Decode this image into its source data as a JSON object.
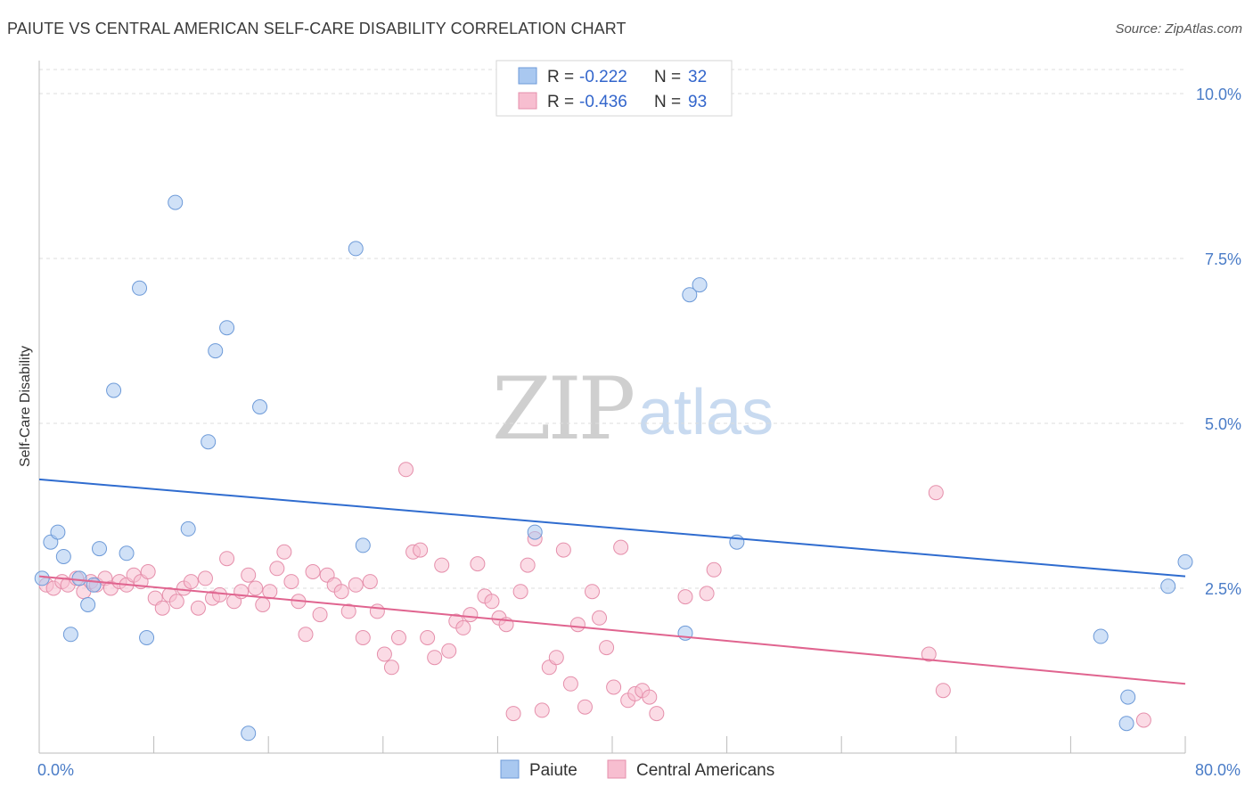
{
  "title": "PAIUTE VS CENTRAL AMERICAN SELF-CARE DISABILITY CORRELATION CHART",
  "source": "Source: ZipAtlas.com",
  "watermark": {
    "zip": "ZIP",
    "atlas": "atlas"
  },
  "legend": {
    "rows": [
      {
        "r_label": "R =",
        "r_value": "-0.222",
        "n_label": "N =",
        "n_value": "32"
      },
      {
        "r_label": "R =",
        "r_value": "-0.436",
        "n_label": "N =",
        "n_value": "93"
      }
    ]
  },
  "chart_data": {
    "type": "scatter",
    "title": "PAIUTE VS CENTRAL AMERICAN SELF-CARE DISABILITY CORRELATION CHART",
    "xlabel": "",
    "ylabel": "Self-Care Disability",
    "xlim": [
      0,
      80
    ],
    "ylim": [
      0,
      10.5
    ],
    "x_tick_labels": [
      "0.0%",
      "80.0%"
    ],
    "y_ticks": [
      2.5,
      5.0,
      7.5,
      10.0
    ],
    "y_tick_labels": [
      "2.5%",
      "5.0%",
      "7.5%",
      "10.0%"
    ],
    "grid": true,
    "legend_position": "top-center",
    "series": [
      {
        "name": "Paiute",
        "color": "#a9c8f0",
        "edge": "#6d9ad8",
        "trend_color": "#2f6ccf",
        "trend": {
          "x0": 0,
          "y0": 4.15,
          "x1": 80,
          "y1": 2.68
        },
        "points": [
          [
            0.2,
            2.65
          ],
          [
            0.8,
            3.2
          ],
          [
            1.3,
            3.35
          ],
          [
            1.7,
            2.98
          ],
          [
            2.2,
            1.8
          ],
          [
            2.8,
            2.65
          ],
          [
            3.4,
            2.25
          ],
          [
            3.8,
            2.55
          ],
          [
            4.2,
            3.1
          ],
          [
            5.2,
            5.5
          ],
          [
            6.1,
            3.03
          ],
          [
            7.0,
            7.05
          ],
          [
            7.5,
            1.75
          ],
          [
            9.5,
            8.35
          ],
          [
            10.4,
            3.4
          ],
          [
            11.8,
            4.72
          ],
          [
            12.3,
            6.1
          ],
          [
            13.1,
            6.45
          ],
          [
            14.6,
            0.3
          ],
          [
            15.4,
            5.25
          ],
          [
            22.1,
            7.65
          ],
          [
            22.6,
            3.15
          ],
          [
            34.6,
            3.35
          ],
          [
            45.1,
            1.82
          ],
          [
            45.4,
            6.95
          ],
          [
            46.1,
            7.1
          ],
          [
            48.7,
            3.2
          ],
          [
            74.1,
            1.77
          ],
          [
            75.9,
            0.45
          ],
          [
            76.0,
            0.85
          ],
          [
            78.8,
            2.53
          ],
          [
            80.0,
            2.9
          ]
        ]
      },
      {
        "name": "Central Americans",
        "color": "#f7bed0",
        "edge": "#e58fab",
        "trend_color": "#e0648f",
        "trend": {
          "x0": 0,
          "y0": 2.68,
          "x1": 80,
          "y1": 1.05
        },
        "points": [
          [
            0.5,
            2.55
          ],
          [
            1.0,
            2.5
          ],
          [
            1.6,
            2.6
          ],
          [
            2.0,
            2.55
          ],
          [
            2.6,
            2.65
          ],
          [
            3.1,
            2.45
          ],
          [
            3.6,
            2.6
          ],
          [
            4.0,
            2.55
          ],
          [
            4.6,
            2.65
          ],
          [
            5.0,
            2.5
          ],
          [
            5.6,
            2.6
          ],
          [
            6.1,
            2.55
          ],
          [
            6.6,
            2.7
          ],
          [
            7.1,
            2.6
          ],
          [
            7.6,
            2.75
          ],
          [
            8.1,
            2.35
          ],
          [
            8.6,
            2.2
          ],
          [
            9.1,
            2.4
          ],
          [
            9.6,
            2.3
          ],
          [
            10.1,
            2.5
          ],
          [
            10.6,
            2.6
          ],
          [
            11.1,
            2.2
          ],
          [
            11.6,
            2.65
          ],
          [
            12.1,
            2.35
          ],
          [
            12.6,
            2.4
          ],
          [
            13.1,
            2.95
          ],
          [
            13.6,
            2.3
          ],
          [
            14.1,
            2.45
          ],
          [
            14.6,
            2.7
          ],
          [
            15.1,
            2.5
          ],
          [
            15.6,
            2.25
          ],
          [
            16.1,
            2.45
          ],
          [
            16.6,
            2.8
          ],
          [
            17.1,
            3.05
          ],
          [
            17.6,
            2.6
          ],
          [
            18.1,
            2.3
          ],
          [
            18.6,
            1.8
          ],
          [
            19.1,
            2.75
          ],
          [
            19.6,
            2.1
          ],
          [
            20.1,
            2.7
          ],
          [
            20.6,
            2.55
          ],
          [
            21.1,
            2.45
          ],
          [
            21.6,
            2.15
          ],
          [
            22.1,
            2.55
          ],
          [
            22.6,
            1.75
          ],
          [
            23.1,
            2.6
          ],
          [
            23.6,
            2.15
          ],
          [
            24.1,
            1.5
          ],
          [
            24.6,
            1.3
          ],
          [
            25.1,
            1.75
          ],
          [
            25.6,
            4.3
          ],
          [
            26.1,
            3.05
          ],
          [
            26.6,
            3.08
          ],
          [
            27.1,
            1.75
          ],
          [
            27.6,
            1.45
          ],
          [
            28.1,
            2.85
          ],
          [
            28.6,
            1.55
          ],
          [
            29.1,
            2.0
          ],
          [
            29.6,
            1.9
          ],
          [
            30.1,
            2.1
          ],
          [
            30.6,
            2.87
          ],
          [
            31.1,
            2.38
          ],
          [
            31.6,
            2.3
          ],
          [
            32.1,
            2.05
          ],
          [
            32.6,
            1.95
          ],
          [
            33.1,
            0.6
          ],
          [
            33.6,
            2.45
          ],
          [
            34.1,
            2.85
          ],
          [
            34.6,
            3.25
          ],
          [
            35.1,
            0.65
          ],
          [
            35.6,
            1.3
          ],
          [
            36.1,
            1.45
          ],
          [
            36.6,
            3.08
          ],
          [
            37.1,
            1.05
          ],
          [
            37.6,
            1.95
          ],
          [
            38.1,
            0.7
          ],
          [
            38.6,
            2.45
          ],
          [
            39.1,
            2.05
          ],
          [
            39.6,
            1.6
          ],
          [
            40.1,
            1.0
          ],
          [
            40.6,
            3.12
          ],
          [
            41.1,
            0.8
          ],
          [
            41.6,
            0.9
          ],
          [
            42.1,
            0.95
          ],
          [
            42.6,
            0.85
          ],
          [
            43.1,
            0.6
          ],
          [
            45.1,
            2.37
          ],
          [
            46.6,
            2.42
          ],
          [
            47.1,
            2.78
          ],
          [
            62.1,
            1.5
          ],
          [
            62.6,
            3.95
          ],
          [
            63.1,
            0.95
          ],
          [
            77.1,
            0.5
          ]
        ]
      }
    ]
  },
  "bottom_legend": [
    {
      "label": "Paiute",
      "color": "#a9c8f0",
      "edge": "#6d9ad8"
    },
    {
      "label": "Central Americans",
      "color": "#f7bed0",
      "edge": "#e58fab"
    }
  ]
}
